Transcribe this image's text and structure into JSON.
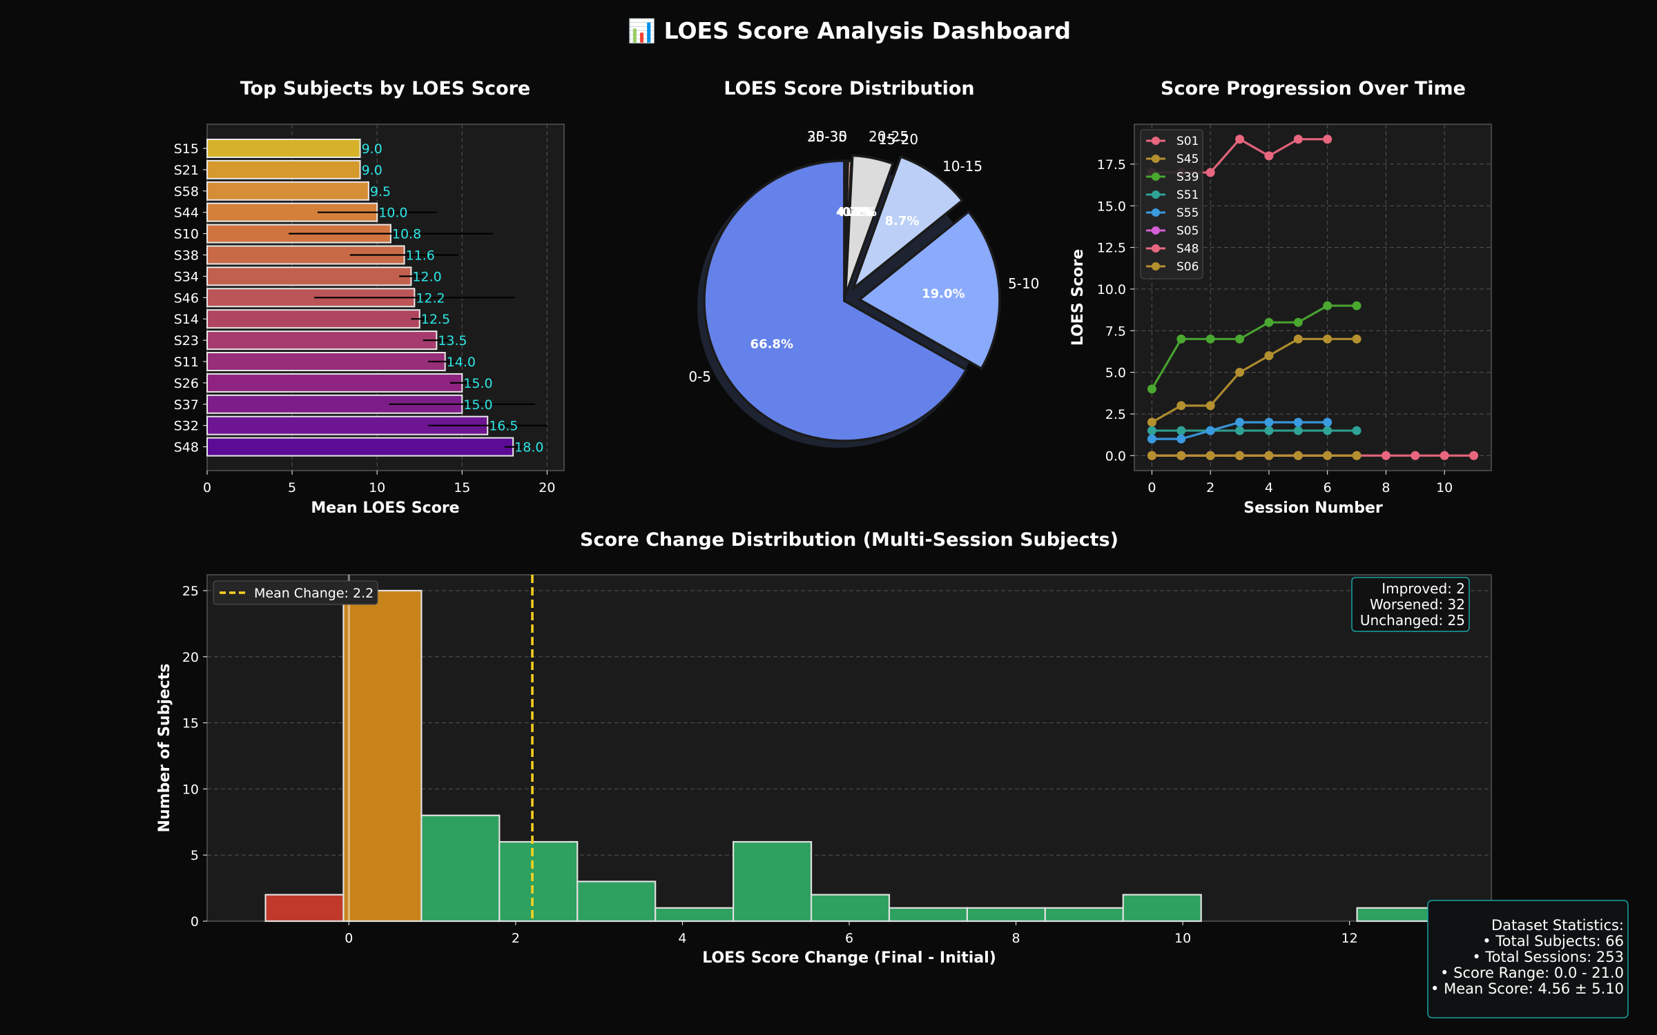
{
  "dashboard_title": "📊 LOES Score Analysis Dashboard",
  "colors": {
    "background": "#0a0a0a",
    "panel": "#1b1b1b",
    "value_label": "#2ee6e6",
    "mean_line": "#ffd21f",
    "improved": "#c0392b",
    "unchanged": "#c8841a",
    "worsened": "#2ea05f",
    "stats_border": "#1aa3a3"
  },
  "chart_data": [
    {
      "type": "bar",
      "orientation": "horizontal",
      "title": "Top Subjects by LOES Score",
      "xlabel": "Mean LOES Score",
      "ylabel": "",
      "xlim": [
        0,
        21
      ],
      "xticks": [
        0,
        5,
        10,
        15,
        20
      ],
      "grid": true,
      "categories": [
        "S15",
        "S21",
        "S58",
        "S44",
        "S10",
        "S38",
        "S34",
        "S46",
        "S14",
        "S23",
        "S11",
        "S26",
        "S37",
        "S32",
        "S48"
      ],
      "values": [
        9.0,
        9.0,
        9.5,
        10.0,
        10.8,
        11.6,
        12.0,
        12.2,
        12.5,
        13.5,
        14.0,
        15.0,
        15.0,
        16.5,
        18.0
      ],
      "value_labels": [
        "9.0",
        "9.0",
        "9.5",
        "10.0",
        "10.8",
        "11.6",
        "12.0",
        "12.2",
        "12.5",
        "13.5",
        "14.0",
        "15.0",
        "15.0",
        "16.5",
        "18.0"
      ],
      "error": [
        0,
        0,
        0,
        3.5,
        6.0,
        3.2,
        0.7,
        5.9,
        0.5,
        0.8,
        1.0,
        0.7,
        4.3,
        3.5,
        0.5
      ],
      "colors": [
        "#d6b22a",
        "#d6992c",
        "#d68e36",
        "#d4803a",
        "#d0743f",
        "#c96a47",
        "#c2604e",
        "#bb5557",
        "#b04560",
        "#a63b6d",
        "#982d78",
        "#8e247f",
        "#7d1d89",
        "#6e1593",
        "#5b0b95"
      ]
    },
    {
      "type": "pie",
      "title": "LOES Score Distribution",
      "labels": [
        "0-5",
        "5-10",
        "10-15",
        "15-20",
        "20-25",
        "25-30",
        "30-35"
      ],
      "values": [
        66.8,
        19.0,
        8.7,
        4.7,
        0.4,
        0.2,
        0.2
      ],
      "value_labels": [
        "66.8%",
        "19.0%",
        "8.7%",
        "4.7%",
        "0.4%",
        "0.2%",
        "0.2%"
      ],
      "colors": [
        "#6482ea",
        "#8aaafc",
        "#bcd0f7",
        "#dcdcdc",
        "#f3c3ad",
        "#f0a284",
        "#e67b5e"
      ]
    },
    {
      "type": "line",
      "title": "Score Progression Over Time",
      "xlabel": "Session Number",
      "ylabel": "LOES Score",
      "xlim": [
        -0.6,
        11.6
      ],
      "ylim": [
        -0.9,
        19.9
      ],
      "xticks": [
        0,
        2,
        4,
        6,
        8,
        10
      ],
      "yticks": [
        0.0,
        2.5,
        5.0,
        7.5,
        10.0,
        12.5,
        15.0,
        17.5
      ],
      "ytick_labels": [
        "0.0",
        "2.5",
        "5.0",
        "7.5",
        "10.0",
        "12.5",
        "15.0",
        "17.5"
      ],
      "grid": true,
      "legend_position": "top-left",
      "series": [
        {
          "name": "S01",
          "color": "#e8677f",
          "x": [
            0,
            1,
            2,
            3,
            4,
            5,
            6
          ],
          "y": [
            17,
            17,
            17,
            19,
            18,
            19,
            19
          ]
        },
        {
          "name": "S45",
          "color": "#b5902f",
          "x": [
            0,
            1,
            2,
            3,
            4,
            5,
            6,
            7
          ],
          "y": [
            2,
            3,
            3,
            5,
            6,
            7,
            7,
            7
          ]
        },
        {
          "name": "S39",
          "color": "#4aa830",
          "x": [
            0,
            1,
            2,
            3,
            4,
            5,
            6,
            7
          ],
          "y": [
            4,
            7,
            7,
            7,
            8,
            8,
            9,
            9
          ]
        },
        {
          "name": "S51",
          "color": "#2fa396",
          "x": [
            0,
            1,
            2,
            3,
            4,
            5,
            6,
            7
          ],
          "y": [
            1.5,
            1.5,
            1.5,
            1.5,
            1.5,
            1.5,
            1.5,
            1.5
          ]
        },
        {
          "name": "S55",
          "color": "#3a9ae0",
          "x": [
            0,
            1,
            2,
            3,
            4,
            5,
            6
          ],
          "y": [
            1,
            1,
            1.5,
            2,
            2,
            2,
            2
          ]
        },
        {
          "name": "S05",
          "color": "#d45fd6",
          "x": [
            0,
            1,
            2,
            3,
            4,
            5,
            6
          ],
          "y": [
            0,
            0,
            0,
            0,
            0,
            0,
            0
          ]
        },
        {
          "name": "S48",
          "color": "#e8677f",
          "x": [
            0,
            1,
            2,
            3,
            4,
            5,
            6,
            7,
            8,
            9,
            10,
            11
          ],
          "y": [
            0,
            0,
            0,
            0,
            0,
            0,
            0,
            0,
            0,
            0,
            0,
            0
          ]
        },
        {
          "name": "S06",
          "color": "#b5902f",
          "x": [
            0,
            1,
            2,
            3,
            4,
            5,
            6,
            7
          ],
          "y": [
            0,
            0,
            0,
            0,
            0,
            0,
            0,
            0
          ]
        }
      ]
    },
    {
      "type": "histogram",
      "title": "Score Change Distribution (Multi-Session Subjects)",
      "xlabel": "LOES Score Change (Final - Initial)",
      "ylabel": "Number of Subjects",
      "xlim": [
        -1.7,
        13.7
      ],
      "ylim": [
        0,
        26.2
      ],
      "xticks": [
        0,
        2,
        4,
        6,
        8,
        10,
        12
      ],
      "yticks": [
        0,
        5,
        10,
        15,
        20,
        25
      ],
      "grid": true,
      "bin_edges": [
        -1.0,
        -0.065,
        0.87,
        1.805,
        2.74,
        3.675,
        4.61,
        5.545,
        6.48,
        7.415,
        8.35,
        9.285,
        10.22,
        11.155,
        12.09,
        13.025
      ],
      "counts": [
        2,
        25,
        8,
        6,
        3,
        1,
        6,
        2,
        1,
        1,
        1,
        2,
        0,
        0,
        1
      ],
      "mean_change": 2.2,
      "mean_label": "Mean Change: 2.2",
      "legend_position": "top-left",
      "summary": [
        "Improved: 2",
        "Worsened: 32",
        "Unchanged: 25"
      ]
    }
  ],
  "stats_box": {
    "lines": [
      "Dataset Statistics:",
      "• Total Subjects: 66",
      "• Total Sessions: 253",
      "• Score Range: 0.0 - 21.0",
      "• Mean Score: 4.56 ± 5.10"
    ]
  }
}
